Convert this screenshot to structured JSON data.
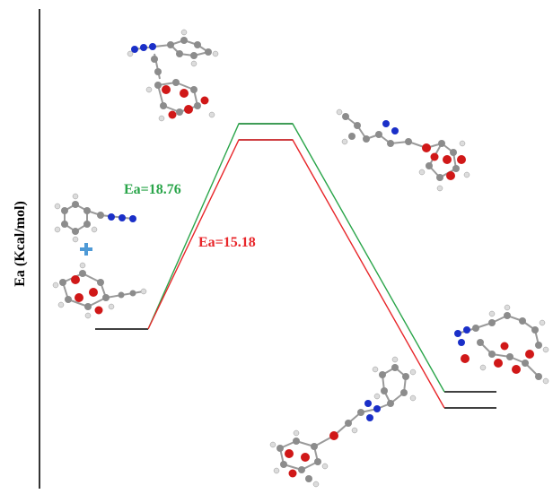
{
  "axis": {
    "y_label": "Ea (Kcal/mol)"
  },
  "barriers": [
    {
      "label": "Ea=18.76",
      "color": "#2aa54a"
    },
    {
      "label": "Ea=15.18",
      "color": "#e8262a"
    }
  ],
  "colors": {
    "level_lines": "#000000",
    "carbon": "#8c8c8c",
    "hydrogen": "#dcdcdc",
    "oxygen": "#d01818",
    "nitrogen": "#1a2fc8",
    "plus": "#4f9ad6"
  },
  "structures": [
    {
      "name": "reactant-molecules",
      "plus_symbol": "+"
    },
    {
      "name": "transition-state-structure"
    },
    {
      "name": "product-structure-top-right"
    },
    {
      "name": "product-structure-bottom-center"
    },
    {
      "name": "product-structure-right"
    }
  ]
}
